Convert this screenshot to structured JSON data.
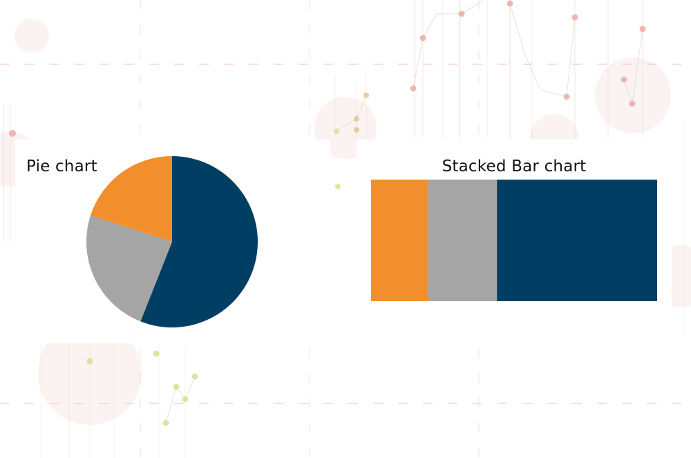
{
  "chart_data": [
    {
      "type": "pie",
      "title": "Pie chart",
      "slices": [
        {
          "value": 56,
          "color": "#003f63"
        },
        {
          "value": 24,
          "color": "#a5a5a5"
        },
        {
          "value": 20,
          "color": "#f28e2b"
        }
      ],
      "start_angle_deg": 0,
      "direction": "clockwise"
    },
    {
      "type": "bar",
      "stacked": true,
      "orientation": "horizontal",
      "title": "Stacked Bar chart",
      "segments": [
        {
          "value": 20,
          "color": "#f28e2b"
        },
        {
          "value": 24,
          "color": "#a5a5a5"
        },
        {
          "value": 56,
          "color": "#003f63"
        }
      ],
      "xlim": [
        0,
        100
      ]
    }
  ]
}
